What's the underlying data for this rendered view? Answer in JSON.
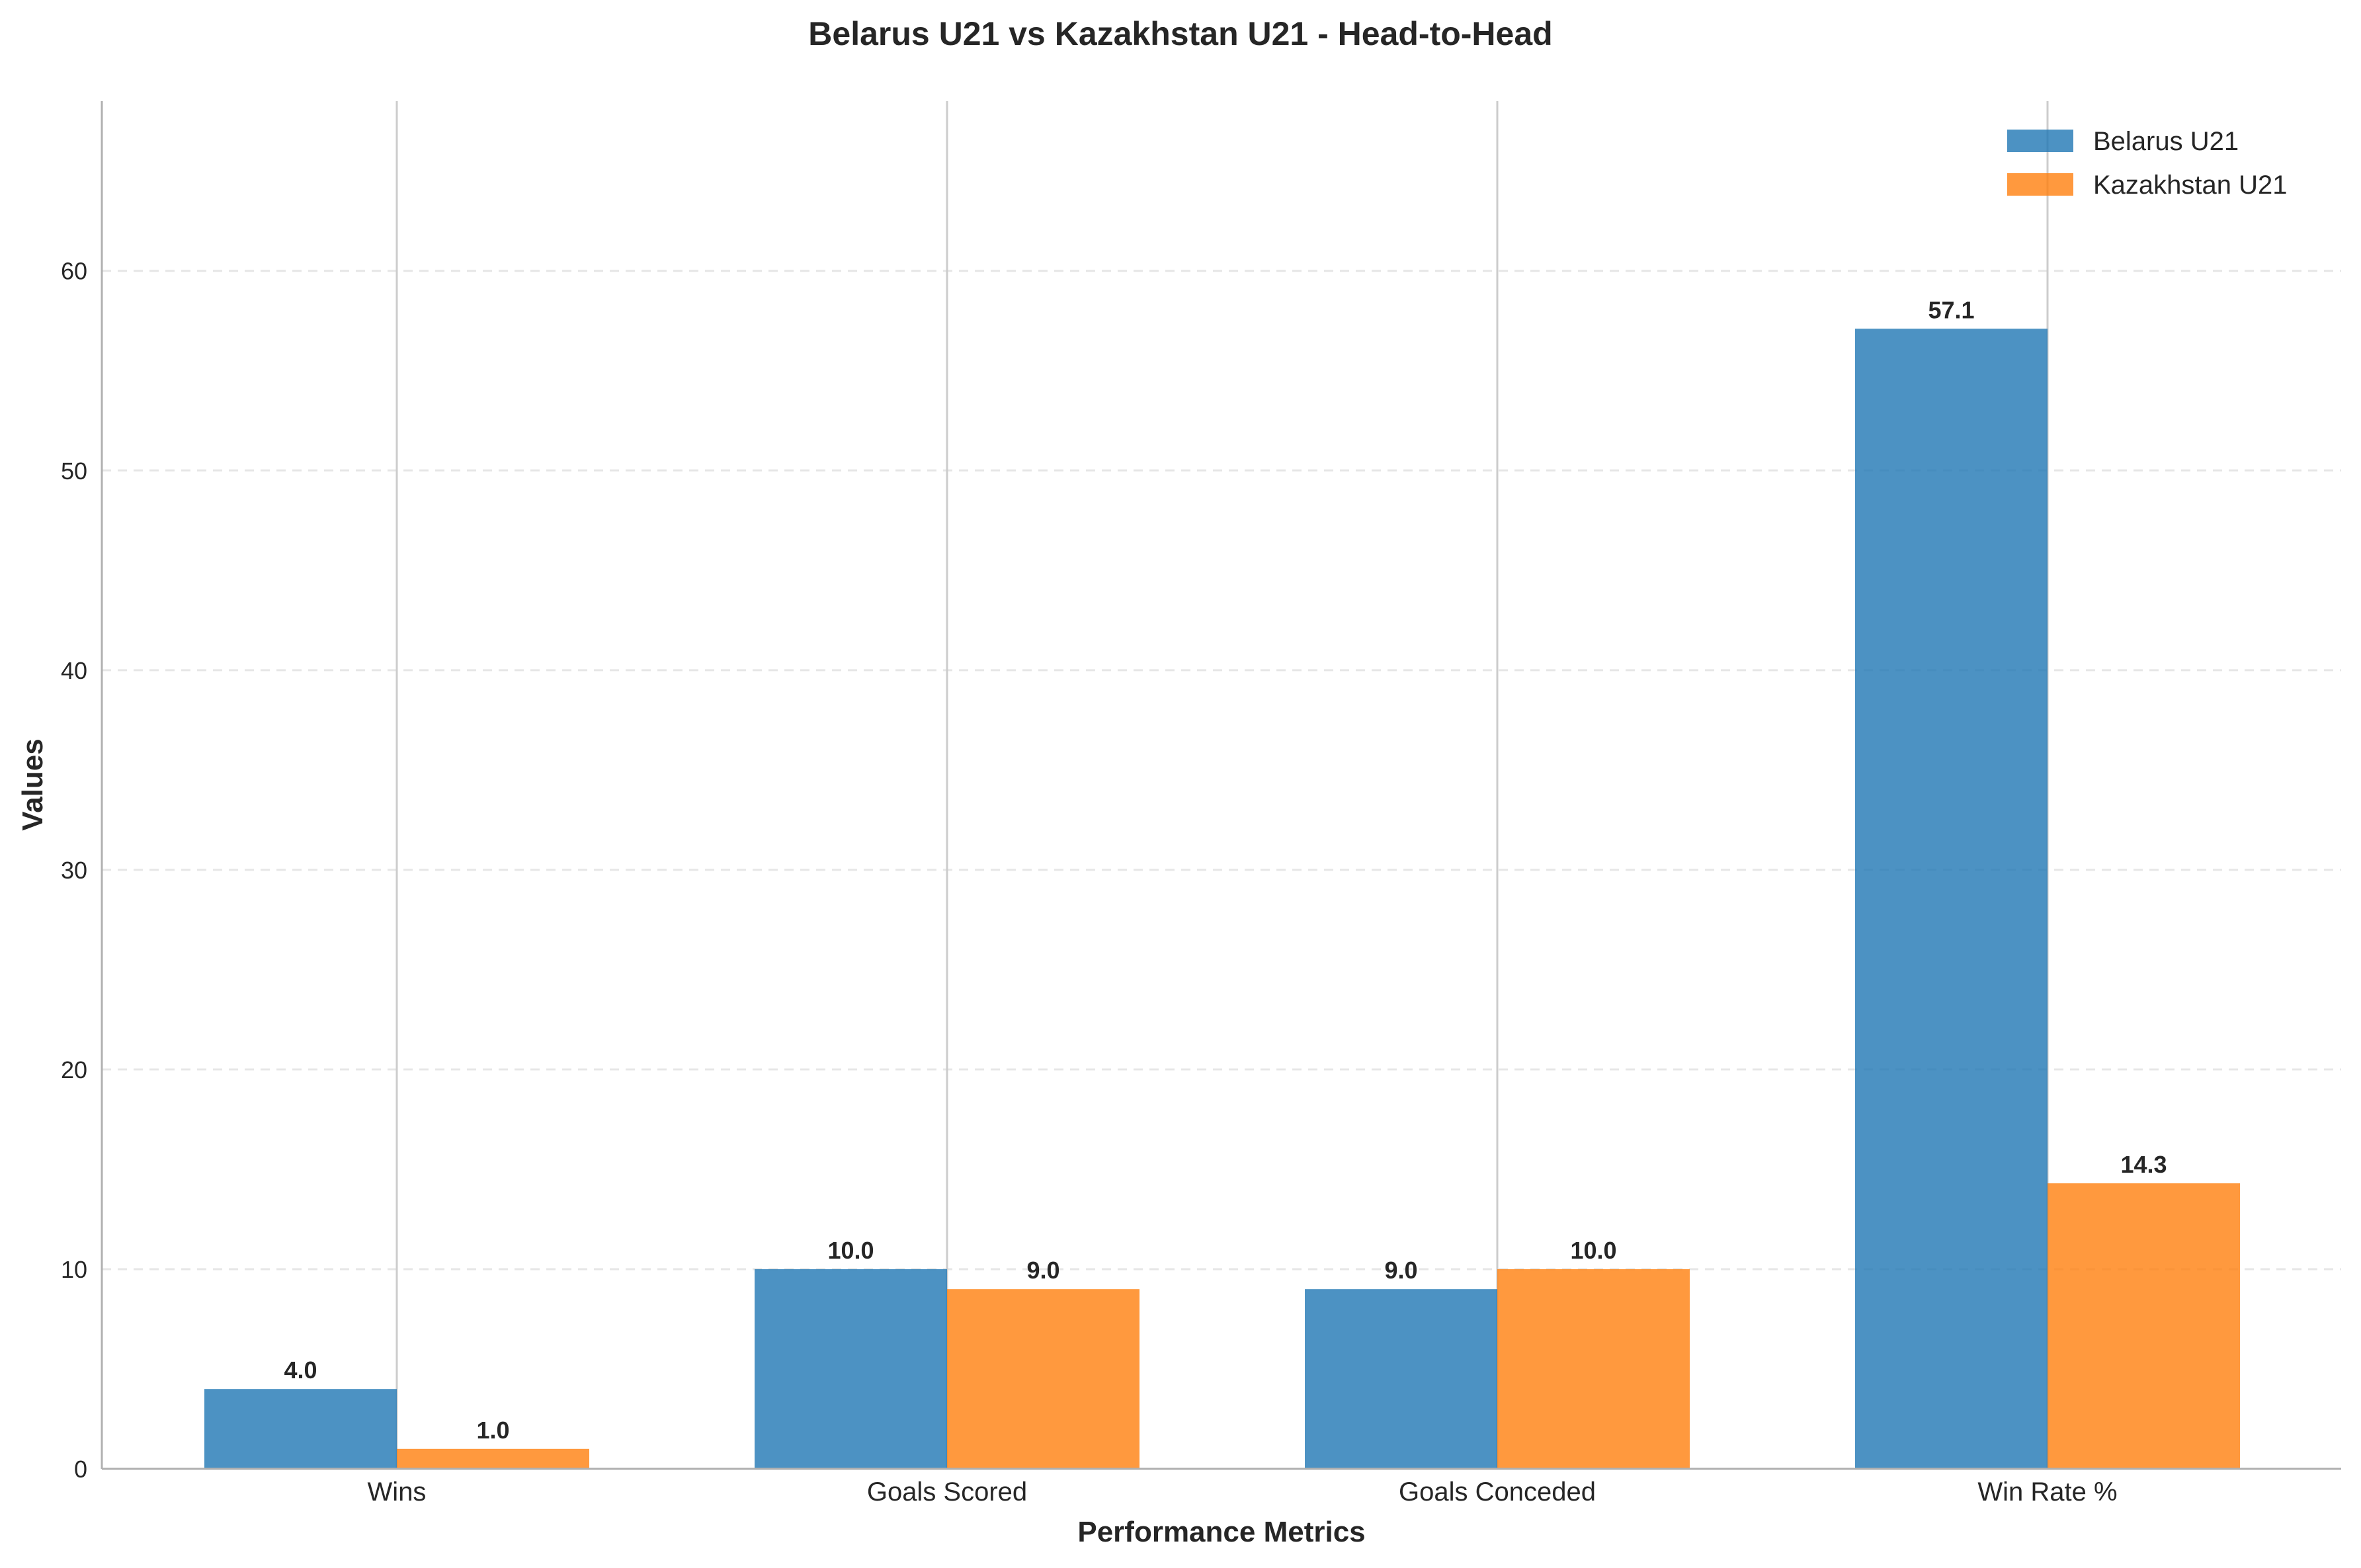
{
  "chart_data": {
    "type": "bar",
    "title": "Belarus U21 vs Kazakhstan U21 - Head-to-Head",
    "xlabel": "Performance Metrics",
    "ylabel": "Values",
    "categories": [
      "Wins",
      "Goals Scored",
      "Goals Conceded",
      "Win Rate %"
    ],
    "series": [
      {
        "name": "Belarus U21",
        "values": [
          4.0,
          10.0,
          9.0,
          57.1
        ],
        "labels": [
          "4.0",
          "10.0",
          "9.0",
          "57.1"
        ],
        "color": "#1f77b4"
      },
      {
        "name": "Kazakhstan U21",
        "values": [
          1.0,
          9.0,
          10.0,
          14.3
        ],
        "labels": [
          "1.0",
          "9.0",
          "10.0",
          "14.3"
        ],
        "color": "#ff7f0e"
      }
    ],
    "ylim": [
      0,
      68.5
    ],
    "yticks": [
      0,
      10,
      20,
      30,
      40,
      50,
      60
    ],
    "ytick_labels": [
      "0",
      "10",
      "20",
      "30",
      "40",
      "50",
      "60"
    ],
    "grid": "y-dashed, x-solid",
    "legend_position": "top-right"
  }
}
